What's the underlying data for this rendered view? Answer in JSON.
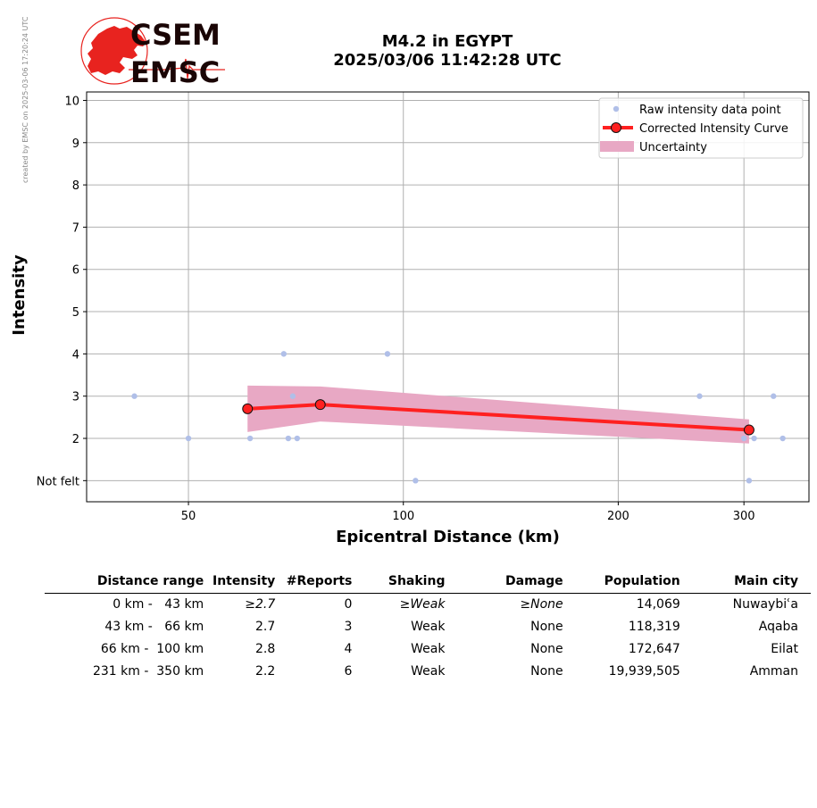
{
  "credit_text": "created by EMSC on 2025-03-06 17:20:24 UTC",
  "logo": {
    "text_top": "CSEM",
    "text_bottom": "EMSC",
    "color": "#e8231f",
    "text_color": "#1a0505"
  },
  "title": {
    "line1": "M4.2 in EGYPT",
    "line2": "2025/03/06 11:42:28 UTC"
  },
  "chart_data": {
    "type": "scatter",
    "xlabel": "Epicentral Distance (km)",
    "ylabel": "Intensity",
    "x_scale": "log",
    "xlim": [
      36,
      370
    ],
    "ylim": [
      0.5,
      10.2
    ],
    "xticks": [
      50,
      100,
      200,
      300
    ],
    "yticks": [
      {
        "value": 1,
        "label": "Not felt"
      },
      {
        "value": 2,
        "label": "2"
      },
      {
        "value": 3,
        "label": "3"
      },
      {
        "value": 4,
        "label": "4"
      },
      {
        "value": 5,
        "label": "5"
      },
      {
        "value": 6,
        "label": "6"
      },
      {
        "value": 7,
        "label": "7"
      },
      {
        "value": 8,
        "label": "8"
      },
      {
        "value": 9,
        "label": "9"
      },
      {
        "value": 10,
        "label": "10"
      }
    ],
    "grid": true,
    "legend_position": "top-right",
    "series": [
      {
        "name": "Raw intensity data point",
        "kind": "points",
        "color": "#b0bfe8",
        "points": [
          {
            "x": 42,
            "y": 3
          },
          {
            "x": 50,
            "y": 2
          },
          {
            "x": 61,
            "y": 2
          },
          {
            "x": 68,
            "y": 4
          },
          {
            "x": 69,
            "y": 2
          },
          {
            "x": 70,
            "y": 3
          },
          {
            "x": 71,
            "y": 2
          },
          {
            "x": 95,
            "y": 4
          },
          {
            "x": 104,
            "y": 1
          },
          {
            "x": 260,
            "y": 3
          },
          {
            "x": 300,
            "y": 2
          },
          {
            "x": 305,
            "y": 1
          },
          {
            "x": 310,
            "y": 2
          },
          {
            "x": 330,
            "y": 3
          },
          {
            "x": 340,
            "y": 2
          }
        ]
      },
      {
        "name": "Corrected Intensity Curve",
        "kind": "line",
        "color": "#ff2020",
        "marker_edge": "#111111",
        "points": [
          {
            "x": 60.5,
            "y": 2.7
          },
          {
            "x": 76.5,
            "y": 2.8
          },
          {
            "x": 305,
            "y": 2.2
          }
        ]
      },
      {
        "name": "Uncertainty",
        "kind": "band",
        "color": "#e8a8c4",
        "points": [
          {
            "x": 60.5,
            "lo": 2.15,
            "hi": 3.25
          },
          {
            "x": 76.5,
            "lo": 2.4,
            "hi": 3.23
          },
          {
            "x": 305,
            "lo": 1.88,
            "hi": 2.45
          }
        ]
      }
    ]
  },
  "table": {
    "headers": [
      "Distance range",
      "Intensity",
      "#Reports",
      "Shaking",
      "Damage",
      "Population",
      "Main city"
    ],
    "rows": [
      {
        "range": "0 km -   43 km",
        "intensity": "≥2.7",
        "reports": "0",
        "shaking": "≥Weak",
        "damage": "≥None",
        "population": "14,069",
        "city": "Nuwaybiʿa",
        "italic": true
      },
      {
        "range": "43 km -   66 km",
        "intensity": "2.7",
        "reports": "3",
        "shaking": "Weak",
        "damage": "None",
        "population": "118,319",
        "city": "Aqaba",
        "italic": false
      },
      {
        "range": "66 km -  100 km",
        "intensity": "2.8",
        "reports": "4",
        "shaking": "Weak",
        "damage": "None",
        "population": "172,647",
        "city": "Eilat",
        "italic": false
      },
      {
        "range": "231 km -  350 km",
        "intensity": "2.2",
        "reports": "6",
        "shaking": "Weak",
        "damage": "None",
        "population": "19,939,505",
        "city": "Amman",
        "italic": false
      }
    ]
  }
}
